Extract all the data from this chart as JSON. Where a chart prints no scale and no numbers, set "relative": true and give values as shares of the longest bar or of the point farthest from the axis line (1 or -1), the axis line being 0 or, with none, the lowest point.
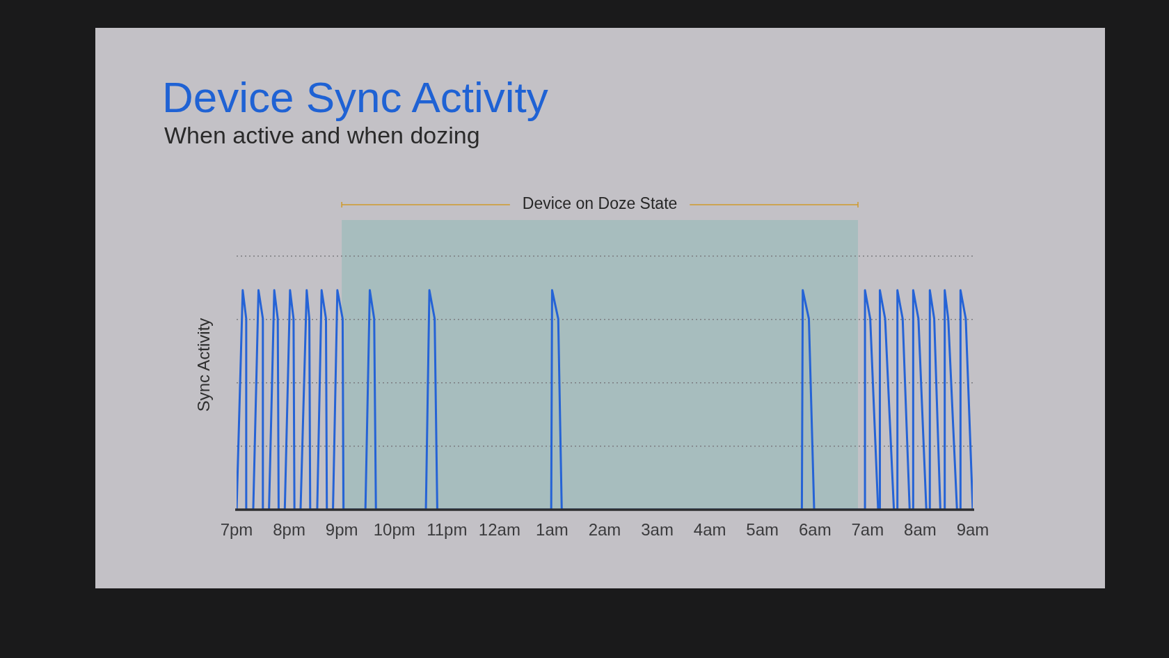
{
  "chart_data": {
    "type": "line",
    "title": "Device Sync Activity",
    "subtitle": "When active and when dozing",
    "ylabel": "Sync Activity",
    "relative": true,
    "xlim": [
      "--01-01T19:00",
      "--01-02T09:00"
    ],
    "xticks": [
      {
        "value": "--01-01T19:00",
        "label": "7pm"
      },
      {
        "value": "--01-01T20:00",
        "label": "8pm"
      },
      {
        "value": "--01-01T21:00",
        "label": "9pm"
      },
      {
        "value": "--01-01T22:00",
        "label": "10pm"
      },
      {
        "value": "--01-01T23:00",
        "label": "11pm"
      },
      {
        "value": "--01-02T00:00",
        "label": "12am"
      },
      {
        "value": "--01-02T01:00",
        "label": "1am"
      },
      {
        "value": "--01-02T02:00",
        "label": "2am"
      },
      {
        "value": "--01-02T03:00",
        "label": "3am"
      },
      {
        "value": "--01-02T04:00",
        "label": "4am"
      },
      {
        "value": "--01-02T05:00",
        "label": "5am"
      },
      {
        "value": "--01-02T06:00",
        "label": "6am"
      },
      {
        "value": "--01-02T07:00",
        "label": "7am"
      },
      {
        "value": "--01-02T08:00",
        "label": "8am"
      },
      {
        "value": "--01-02T09:00",
        "label": "9am"
      }
    ],
    "series": [
      {
        "color": "#2563d6",
        "x": [
          "--01-01T19:00",
          "--01-01T19:07",
          "--01-01T19:11",
          "--01-01T19:11",
          "--01-01T19:19",
          "--01-01T19:25",
          "--01-01T19:30",
          "--01-01T19:30",
          "--01-01T19:37",
          "--01-01T19:43",
          "--01-01T19:47",
          "--01-01T19:48",
          "--01-01T19:55",
          "--01-01T20:01",
          "--01-01T20:05",
          "--01-01T20:06",
          "--01-01T20:13",
          "--01-01T20:20",
          "--01-01T20:23",
          "--01-01T20:24",
          "--01-01T20:32",
          "--01-01T20:37",
          "--01-01T20:42",
          "--01-01T20:43",
          "--01-01T20:50",
          "--01-01T20:55",
          "--01-01T21:01",
          "--01-01T21:02",
          "--01-01T21:27",
          "--01-01T21:32",
          "--01-01T21:37",
          "--01-01T21:39",
          "--01-01T22:36",
          "--01-01T22:40",
          "--01-01T22:46",
          "--01-01T22:49",
          "--01-02T00:59",
          "--01-02T01:00",
          "--01-02T01:07",
          "--01-02T01:11",
          "--01-02T05:45",
          "--01-02T05:46",
          "--01-02T05:53",
          "--01-02T05:59",
          "--01-02T06:57",
          "--01-02T06:57",
          "--01-02T07:03",
          "--01-02T07:12",
          "--01-02T07:14",
          "--01-02T07:14",
          "--01-02T07:20",
          "--01-02T07:30",
          "--01-02T07:34",
          "--01-02T07:34",
          "--01-02T07:40",
          "--01-02T07:48",
          "--01-02T07:52",
          "--01-02T07:52",
          "--01-02T07:58",
          "--01-02T08:07",
          "--01-02T08:11",
          "--01-02T08:11",
          "--01-02T08:16",
          "--01-02T08:23",
          "--01-02T08:28",
          "--01-02T08:28",
          "--01-02T08:32",
          "--01-02T08:42",
          "--01-02T08:46",
          "--01-02T08:46",
          "--01-02T08:52",
          "--01-02T09:00"
        ],
        "values": [
          0,
          1,
          0.87,
          0,
          0,
          1,
          0.87,
          0,
          0,
          1,
          0.87,
          0,
          0,
          1,
          0.87,
          0,
          0,
          1,
          0.87,
          0,
          0,
          1,
          0.87,
          0,
          0,
          1,
          0.87,
          0,
          0,
          1,
          0.87,
          0,
          0,
          1,
          0.87,
          0,
          0,
          1,
          0.87,
          0,
          0,
          1,
          0.87,
          0,
          0,
          1,
          0.87,
          0,
          0,
          1,
          0.87,
          0,
          0,
          1,
          0.87,
          0,
          0,
          1,
          0.87,
          0,
          0,
          1,
          0.87,
          0,
          0,
          1,
          0.87,
          0,
          0,
          1,
          0.87,
          0
        ]
      }
    ],
    "bands": [
      {
        "axis": "x",
        "from": "--01-01T21:00",
        "to": "--01-02T06:49",
        "label": "Device on Doze State",
        "color": "#a7bdbe"
      }
    ],
    "grid": "y",
    "marker": "none",
    "line_style": "solid"
  }
}
